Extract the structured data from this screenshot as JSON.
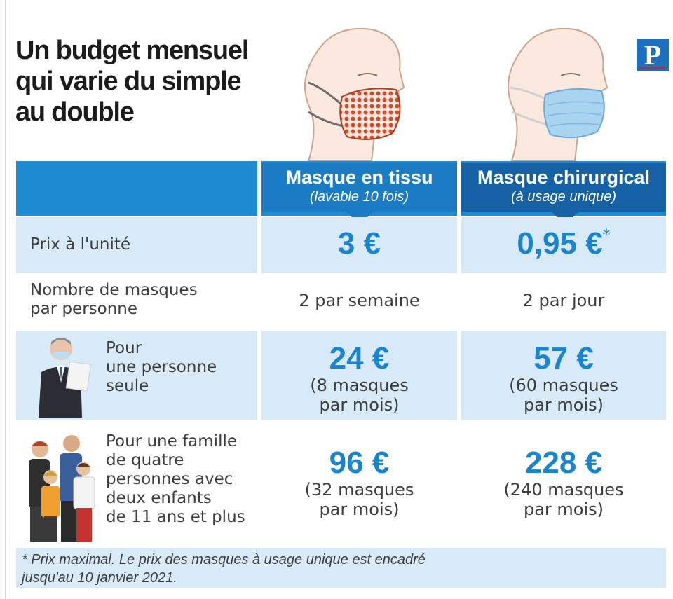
{
  "title_lines": [
    "Un budget mensuel",
    "qui varie du simple",
    "au double"
  ],
  "logo_letter": "P",
  "colors": {
    "blue": "#1d8ad2",
    "dark_blue": "#1660a4",
    "light_blue": "#d8eaf7",
    "value_blue": "#1a84cf"
  },
  "columns": {
    "tissu": {
      "name": "Masque en tissu",
      "detail": "(lavable 10 fois)"
    },
    "chir": {
      "name": "Masque chirurgical",
      "detail": "(à usage unique)"
    }
  },
  "rows": {
    "prix": {
      "label": "Prix à l'unité",
      "tissu": "3 €",
      "chir": "0,95 €",
      "chir_mark": "*"
    },
    "nombre": {
      "label_l1": "Nombre de masques",
      "label_l2": "par personne",
      "tissu": "2 par semaine",
      "chir": "2 par jour"
    },
    "seule": {
      "label_l1": "Pour",
      "label_l2": "une personne",
      "label_l3": "seule",
      "tissu": "24 €",
      "tissu_d1": "(8 masques",
      "tissu_d2": "par mois)",
      "chir": "57 €",
      "chir_d1": "(60 masques",
      "chir_d2": "par mois)"
    },
    "famille": {
      "label_l1": "Pour une famille",
      "label_l2": "de quatre",
      "label_l3": "personnes avec",
      "label_l4": "deux enfants",
      "label_l5": "de 11 ans et plus",
      "tissu": "96 €",
      "tissu_d1": "(32 masques",
      "tissu_d2": "par mois)",
      "chir": "228 €",
      "chir_d1": "(240 masques",
      "chir_d2": "par mois)"
    }
  },
  "footnote_l1": "* Prix maximal. Le prix des masques à usage unique est encadré",
  "footnote_l2": "jusqu'au 10 janvier 2021."
}
